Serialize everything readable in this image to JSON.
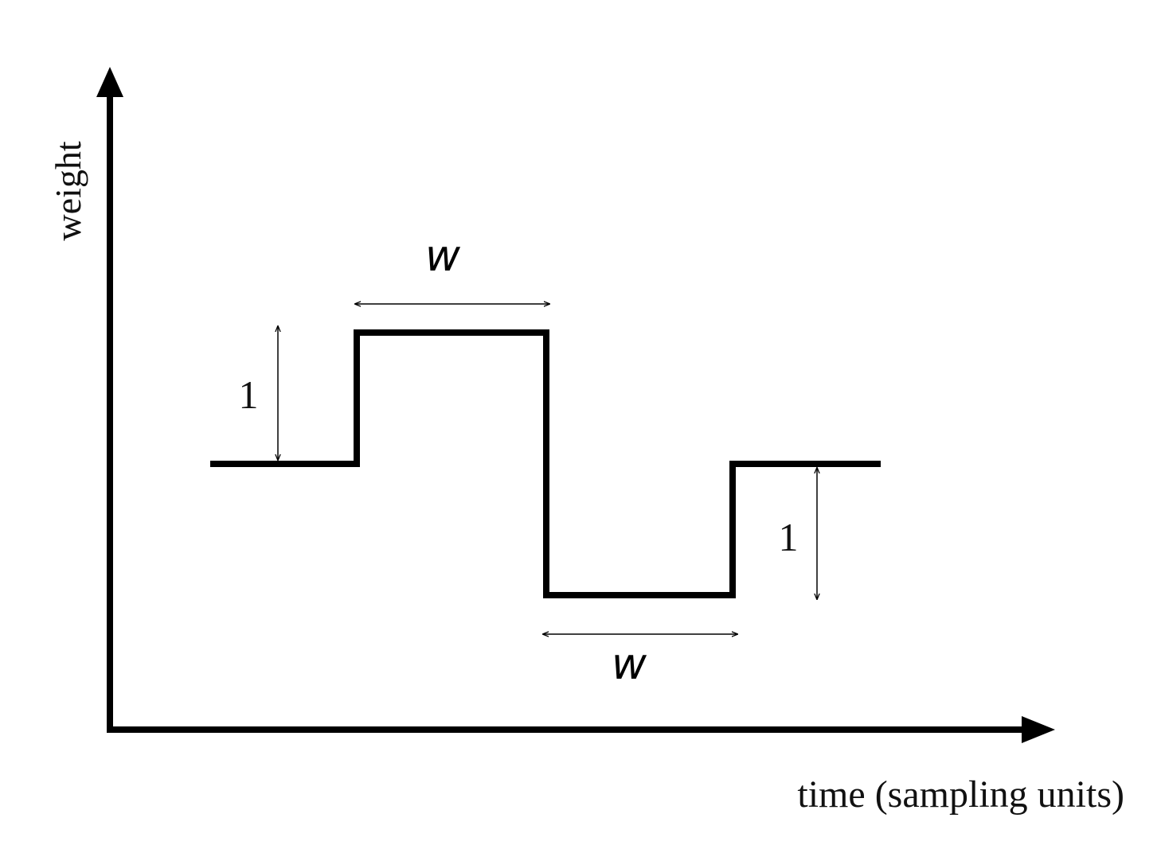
{
  "axes": {
    "y_label": "weight",
    "x_label": "time (sampling units)"
  },
  "annotations": {
    "step_up_height": "1",
    "step_down_height": "1",
    "high_width": "w",
    "low_width": "w"
  },
  "colors": {
    "line": "#000000",
    "background": "#ffffff"
  }
}
